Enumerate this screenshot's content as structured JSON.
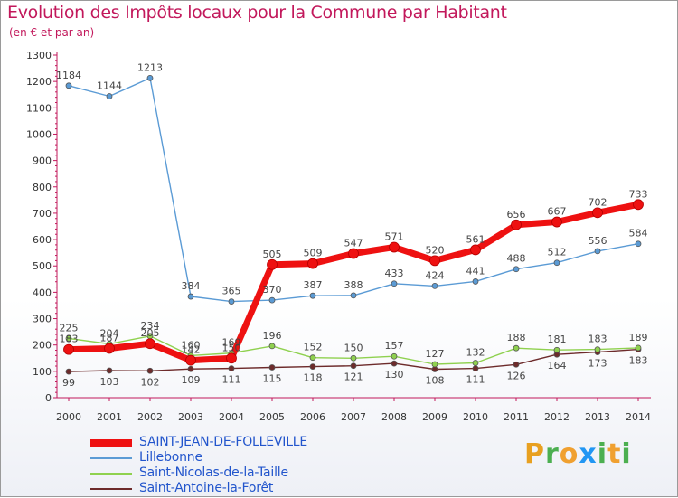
{
  "title": "Evolution des Impôts locaux pour la Commune par Habitant",
  "subtitle": "(en € et par an)",
  "brand": {
    "letters": [
      "P",
      "r",
      "o",
      "x",
      "i",
      "t",
      "i"
    ],
    "colors": [
      "#e8a020",
      "#4caf50",
      "#f0a030",
      "#2196f3",
      "#4caf50",
      "#f0a030",
      "#4caf50"
    ]
  },
  "chart_data": {
    "type": "line",
    "x": [
      "2000",
      "2001",
      "2002",
      "2003",
      "2004",
      "2005",
      "2006",
      "2007",
      "2008",
      "2009",
      "2010",
      "2011",
      "2012",
      "2013",
      "2014"
    ],
    "ylim": [
      0,
      1300
    ],
    "yticks": [
      0,
      100,
      200,
      300,
      400,
      500,
      600,
      700,
      800,
      900,
      1000,
      1100,
      1200,
      1300
    ],
    "grid": false,
    "series": [
      {
        "name": "SAINT-JEAN-DE-FOLLEVILLE",
        "color": "#ee1111",
        "bold": true,
        "values": [
          183,
          187,
          205,
          142,
          150,
          505,
          509,
          547,
          571,
          520,
          561,
          656,
          667,
          702,
          733
        ]
      },
      {
        "name": "Lillebonne",
        "color": "#5b9bd5",
        "bold": false,
        "values": [
          1184,
          1144,
          1213,
          384,
          365,
          370,
          387,
          388,
          433,
          424,
          441,
          488,
          512,
          556,
          584
        ]
      },
      {
        "name": "Saint-Nicolas-de-la-Taille",
        "color": "#8fd14f",
        "bold": false,
        "values": [
          225,
          204,
          234,
          160,
          169,
          196,
          152,
          150,
          157,
          127,
          132,
          188,
          181,
          183,
          189
        ]
      },
      {
        "name": "Saint-Antoine-la-Forêt",
        "color": "#6d2b2b",
        "bold": false,
        "values": [
          99,
          103,
          102,
          109,
          111,
          115,
          118,
          121,
          130,
          108,
          111,
          126,
          164,
          173,
          183
        ]
      }
    ]
  }
}
